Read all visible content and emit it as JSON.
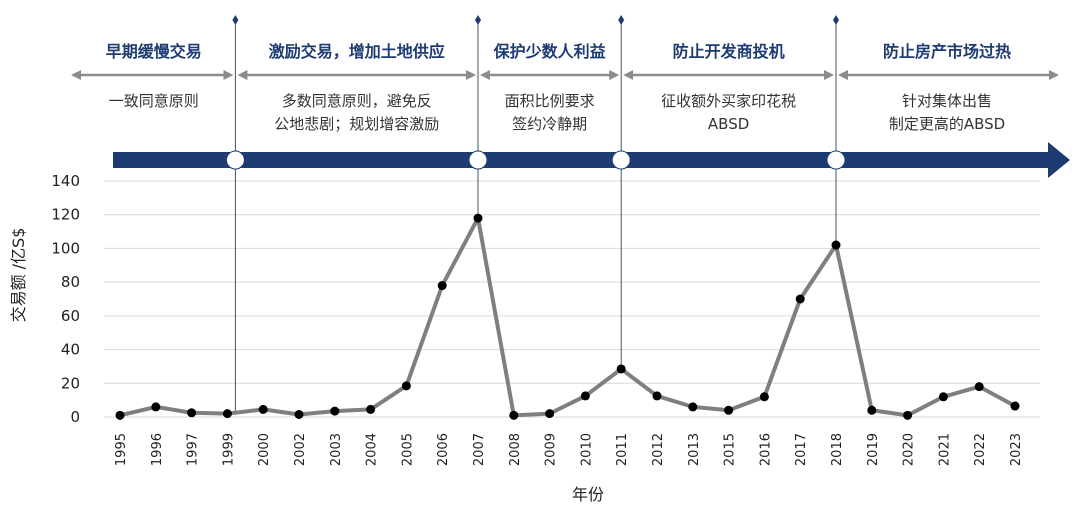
{
  "chart_data": {
    "type": "line",
    "ylabel": "交易额 /亿S$",
    "xlabel": "年份",
    "ylim": [
      0,
      140
    ],
    "yticks": [
      0,
      20,
      40,
      60,
      80,
      100,
      120,
      140
    ],
    "grid": "horizontal",
    "categories": [
      "1995",
      "1996",
      "1997",
      "1999",
      "2000",
      "2002",
      "2003",
      "2004",
      "2005",
      "2006",
      "2007",
      "2008",
      "2009",
      "2010",
      "2011",
      "2012",
      "2013",
      "2015",
      "2016",
      "2017",
      "2018",
      "2019",
      "2020",
      "2021",
      "2022",
      "2023"
    ],
    "series": [
      {
        "values": [
          1,
          6,
          2.5,
          2,
          4.5,
          1.5,
          3.5,
          4.5,
          18.5,
          78,
          118,
          1,
          2,
          12.5,
          28.5,
          12.5,
          6,
          4,
          12,
          70,
          102,
          4,
          1,
          12,
          18,
          6.5
        ]
      }
    ],
    "phases": [
      {
        "title": "早期缓慢交易",
        "desc": [
          "一致同意原则"
        ]
      },
      {
        "title": "激励交易，增加土地供应",
        "desc": [
          "多数同意原则，避免反",
          "公地悲剧；规划增容激励"
        ]
      },
      {
        "title": "保护少数人利益",
        "desc": [
          "面积比例要求",
          "签约冷静期"
        ]
      },
      {
        "title": "防止开发商投机",
        "desc": [
          "征收额外买家印花税",
          "ABSD"
        ]
      },
      {
        "title": "防止房产市场过热",
        "desc": [
          "针对集体出售",
          "制定更高的ABSD"
        ]
      }
    ],
    "phase_boundaries": [
      "1999",
      "2007",
      "2011",
      "2018"
    ],
    "colors": {
      "line": "#7f7f7f",
      "marker": "#000000",
      "timeline": "#1f3c72",
      "phase_title": "#1f3c72",
      "arrow": "#8c8c8c",
      "grid": "#d9d9d9"
    }
  }
}
